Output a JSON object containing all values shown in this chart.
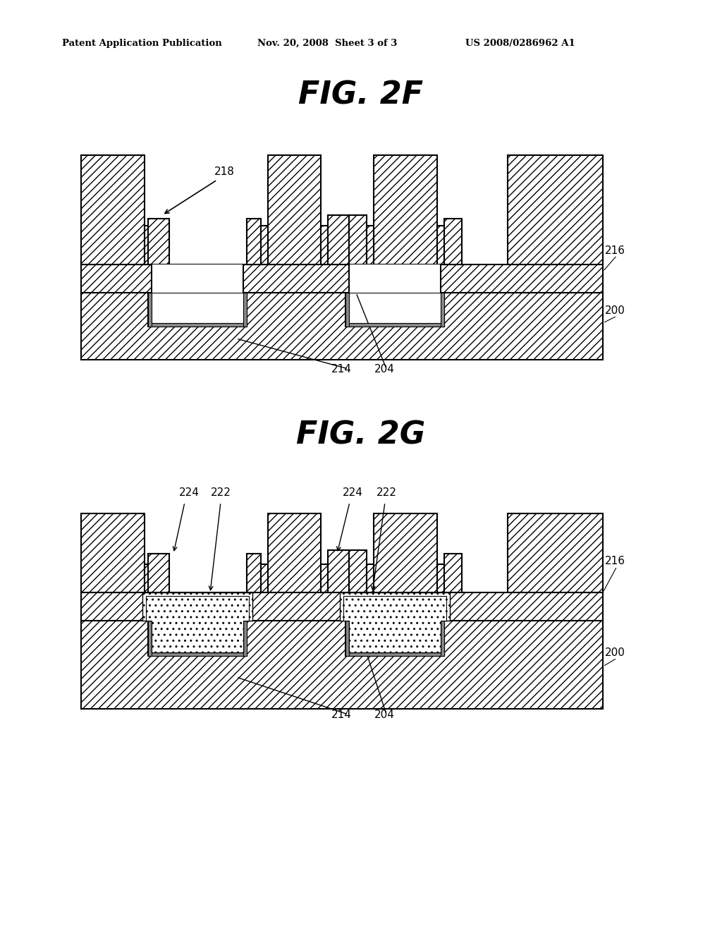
{
  "header_left": "Patent Application Publication",
  "header_center": "Nov. 20, 2008  Sheet 3 of 3",
  "header_right": "US 2008/0286962 A1",
  "fig2f_title": "FIG. 2F",
  "fig2g_title": "FIG. 2G",
  "bg_color": "#ffffff"
}
